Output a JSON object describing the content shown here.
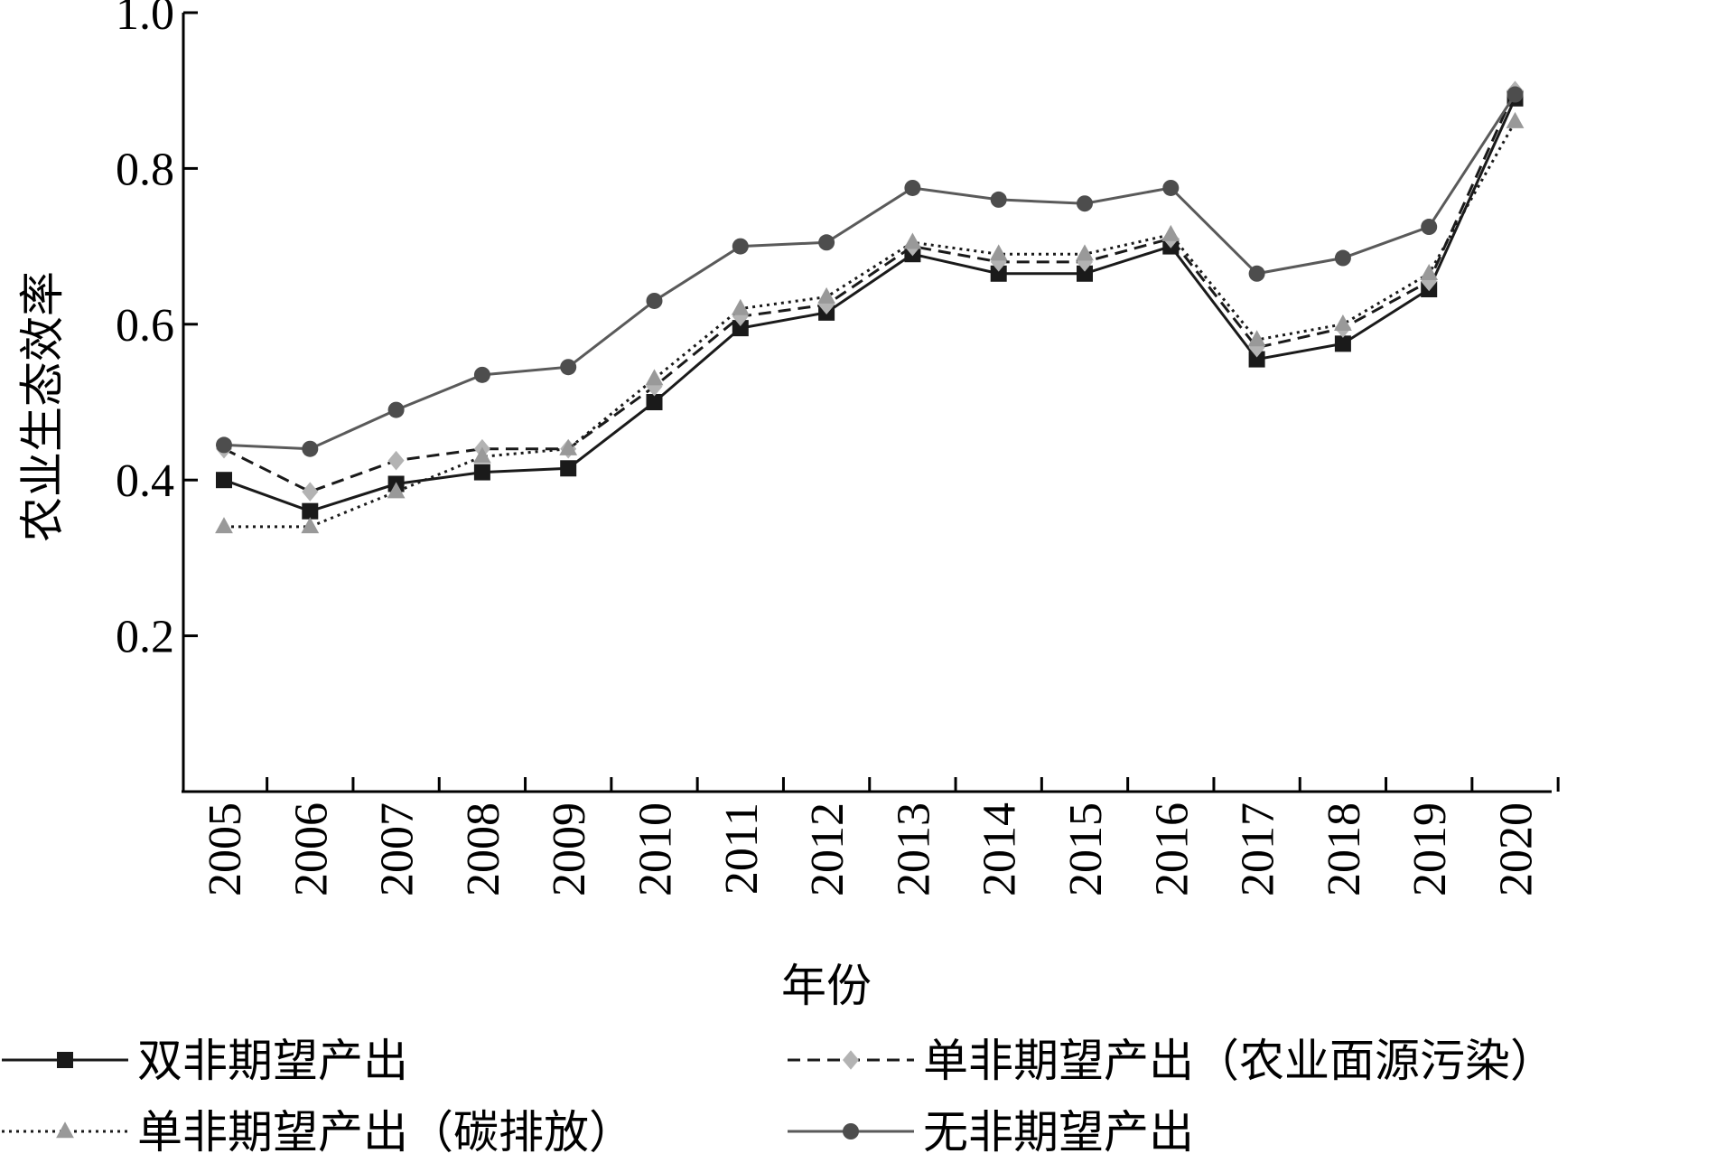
{
  "chart_data": {
    "type": "line",
    "title": "",
    "xlabel": "年份",
    "ylabel": "农业生态效率",
    "ylim": [
      0,
      1.0
    ],
    "yticks": [
      "0.2",
      "0.4",
      "0.6",
      "0.8",
      "1.0"
    ],
    "categories": [
      "2005",
      "2006",
      "2007",
      "2008",
      "2009",
      "2010",
      "2011",
      "2012",
      "2013",
      "2014",
      "2015",
      "2016",
      "2017",
      "2018",
      "2019",
      "2020"
    ],
    "grid": false,
    "legend_position": "bottom",
    "series": [
      {
        "name": "双非期望产出",
        "marker": "square",
        "dash": "solid",
        "line_color": "#1a1a1a",
        "marker_color": "#1a1a1a",
        "values": [
          0.4,
          0.36,
          0.395,
          0.41,
          0.415,
          0.5,
          0.595,
          0.615,
          0.69,
          0.665,
          0.665,
          0.7,
          0.555,
          0.575,
          0.645,
          0.89
        ]
      },
      {
        "name": "单非期望产出（农业面源污染）",
        "marker": "diamond",
        "dash": "dashed",
        "line_color": "#1a1a1a",
        "marker_color": "#b3b3b3",
        "values": [
          0.44,
          0.385,
          0.425,
          0.44,
          0.44,
          0.52,
          0.61,
          0.625,
          0.7,
          0.68,
          0.68,
          0.71,
          0.57,
          0.595,
          0.655,
          0.9
        ]
      },
      {
        "name": "单非期望产出（碳排放）",
        "marker": "triangle",
        "dash": "dotted",
        "line_color": "#1a1a1a",
        "marker_color": "#999999",
        "values": [
          0.34,
          0.34,
          0.385,
          0.43,
          0.44,
          0.53,
          0.62,
          0.635,
          0.705,
          0.69,
          0.69,
          0.715,
          0.58,
          0.6,
          0.665,
          0.86
        ]
      },
      {
        "name": "无非期望产出",
        "marker": "circle",
        "dash": "solid",
        "line_color": "#5a5a5a",
        "marker_color": "#4d4d4d",
        "values": [
          0.445,
          0.44,
          0.49,
          0.535,
          0.545,
          0.63,
          0.7,
          0.705,
          0.775,
          0.76,
          0.755,
          0.775,
          0.665,
          0.685,
          0.725,
          0.895
        ]
      }
    ]
  }
}
